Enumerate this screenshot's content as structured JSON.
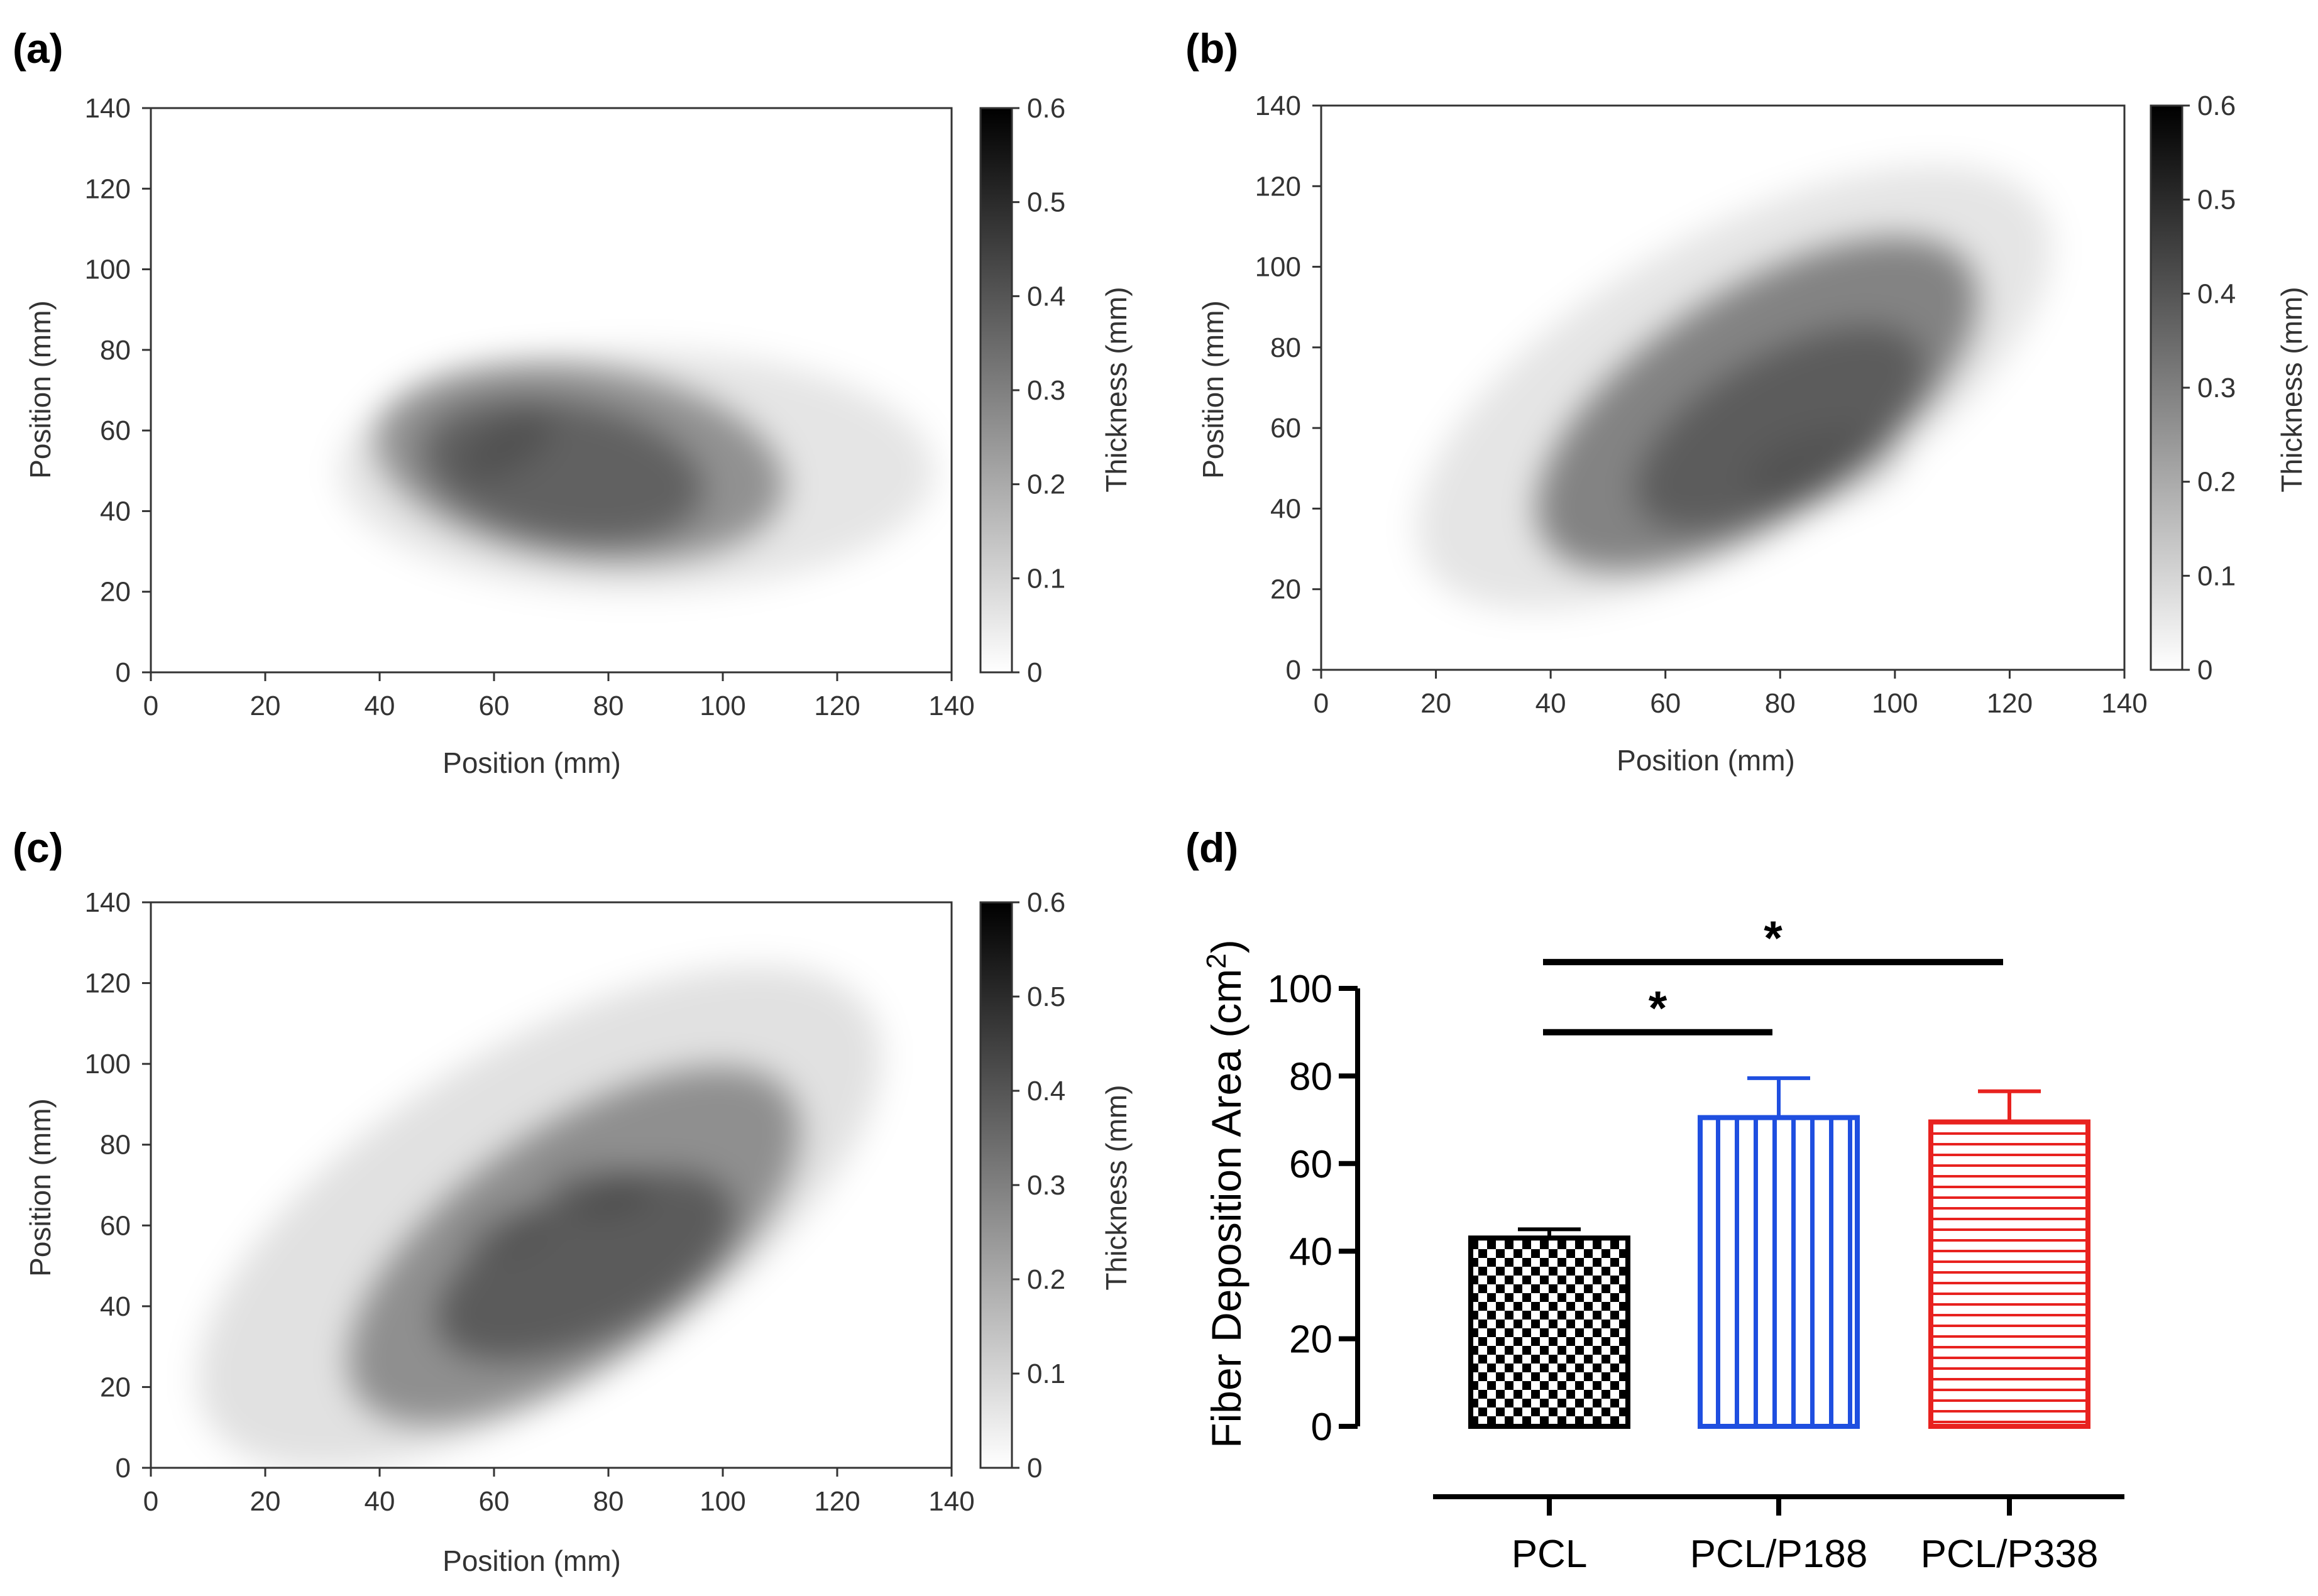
{
  "colorbar_ticks": [
    "0",
    "0.1",
    "0.2",
    "0.3",
    "0.4",
    "0.5",
    "0.6"
  ],
  "chart_data": [
    {
      "panel": "(a)",
      "type": "heatmap",
      "xlabel": "Position (mm)",
      "ylabel": "Position (mm)",
      "colorbar_label": "Thickness (mm)",
      "xlim": [
        0,
        140
      ],
      "ylim": [
        0,
        140
      ],
      "zlim": [
        0,
        0.6
      ],
      "xticks": [
        0,
        20,
        40,
        60,
        80,
        100,
        120,
        140
      ],
      "yticks": [
        0,
        20,
        40,
        60,
        80,
        100,
        120,
        140
      ],
      "blobs": [
        {
          "cx": 85,
          "cy": 50,
          "rx": 52,
          "ry": 30,
          "rot": 0,
          "peak": 0.06
        },
        {
          "cx": 75,
          "cy": 52,
          "rx": 36,
          "ry": 24,
          "rot": 8,
          "peak": 0.22
        },
        {
          "cx": 72,
          "cy": 50,
          "rx": 25,
          "ry": 17,
          "rot": 10,
          "peak": 0.2
        },
        {
          "cx": 62,
          "cy": 56,
          "rx": 9,
          "ry": 6,
          "rot": -30,
          "peak": 0.1
        }
      ]
    },
    {
      "panel": "(b)",
      "type": "heatmap",
      "xlabel": "Position (mm)",
      "ylabel": "Position (mm)",
      "colorbar_label": "Thickness (mm)",
      "xlim": [
        0,
        140
      ],
      "ylim": [
        0,
        140
      ],
      "zlim": [
        0,
        0.6
      ],
      "xticks": [
        0,
        20,
        40,
        60,
        80,
        100,
        120,
        140
      ],
      "yticks": [
        0,
        20,
        40,
        60,
        80,
        100,
        120,
        140
      ],
      "blobs": [
        {
          "cx": 72,
          "cy": 70,
          "rx": 62,
          "ry": 38,
          "rot": -30,
          "peak": 0.06
        },
        {
          "cx": 76,
          "cy": 66,
          "rx": 44,
          "ry": 28,
          "rot": -33,
          "peak": 0.26
        },
        {
          "cx": 80,
          "cy": 60,
          "rx": 28,
          "ry": 18,
          "rot": -30,
          "peak": 0.18
        },
        {
          "cx": 88,
          "cy": 50,
          "rx": 14,
          "ry": 9,
          "rot": -10,
          "peak": 0.06
        }
      ]
    },
    {
      "panel": "(c)",
      "type": "heatmap",
      "xlabel": "Position (mm)",
      "ylabel": "Position (mm)",
      "colorbar_label": "Thickness (mm)",
      "xlim": [
        0,
        140
      ],
      "ylim": [
        0,
        140
      ],
      "zlim": [
        0,
        0.6
      ],
      "xticks": [
        0,
        20,
        40,
        60,
        80,
        100,
        120,
        140
      ],
      "yticks": [
        0,
        20,
        40,
        60,
        80,
        100,
        120,
        140
      ],
      "blobs": [
        {
          "cx": 68,
          "cy": 62,
          "rx": 68,
          "ry": 42,
          "rot": -32,
          "peak": 0.07
        },
        {
          "cx": 74,
          "cy": 55,
          "rx": 46,
          "ry": 29,
          "rot": -35,
          "peak": 0.22
        },
        {
          "cx": 76,
          "cy": 50,
          "rx": 28,
          "ry": 18,
          "rot": -25,
          "peak": 0.22
        },
        {
          "cx": 78,
          "cy": 69,
          "rx": 9,
          "ry": 6,
          "rot": 0,
          "peak": 0.1
        },
        {
          "cx": 62,
          "cy": 59,
          "rx": 8,
          "ry": 5,
          "rot": -20,
          "peak": 0.08
        }
      ]
    },
    {
      "panel": "(d)",
      "type": "bar",
      "ylabel": "Fiber Deposition Area (cm²)",
      "ylabel_main": "Fiber Deposition Area (cm",
      "ylabel_sup": "2",
      "ylabel_close": ")",
      "categories": [
        "PCL",
        "PCL/P188",
        "PCL/P338"
      ],
      "values": [
        43,
        70.5,
        69.5
      ],
      "errors": [
        2,
        9,
        7
      ],
      "colors": [
        "#000000",
        "#1f4fe0",
        "#e8221f"
      ],
      "patterns": [
        "checker",
        "vertical",
        "horizontal"
      ],
      "ylim": [
        0,
        100
      ],
      "yticks": [
        0,
        20,
        40,
        60,
        80,
        100
      ],
      "significance": [
        {
          "from": 0,
          "to": 1,
          "y": 90,
          "label": "*"
        },
        {
          "from": 0,
          "to": 2,
          "y": 106,
          "label": "*"
        }
      ]
    }
  ]
}
